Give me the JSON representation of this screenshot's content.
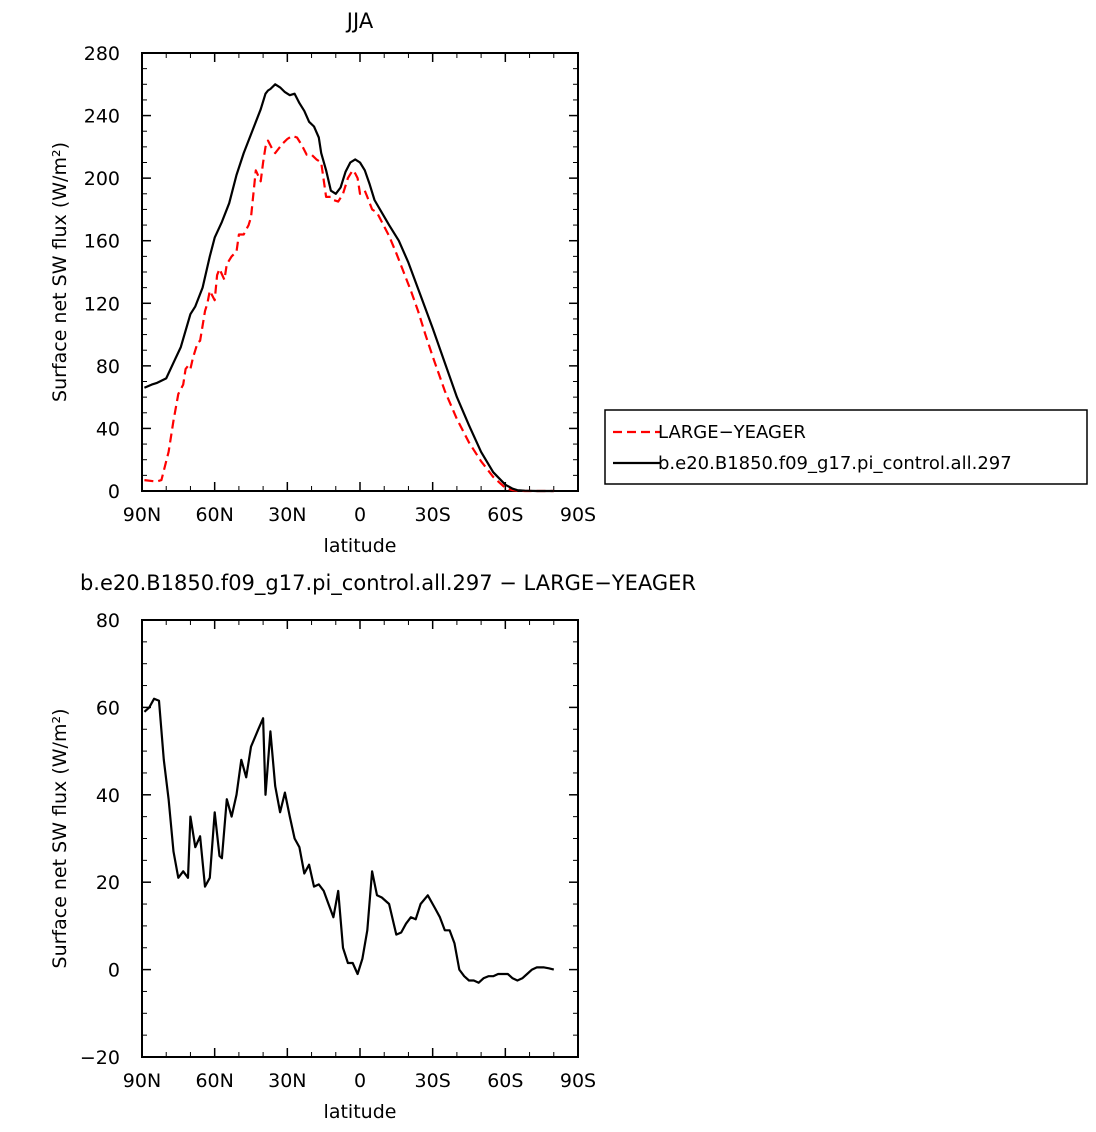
{
  "chart_data": [
    {
      "type": "line",
      "title": "JJA",
      "xlabel": "latitude",
      "ylabel": "Surface net SW flux (W/m²)",
      "xlim": [
        90,
        -90
      ],
      "ylim": [
        0,
        280
      ],
      "xticks": [
        90,
        60,
        30,
        0,
        -30,
        -60,
        -90
      ],
      "xticklabels": [
        "90N",
        "60N",
        "30N",
        "0",
        "30S",
        "60S",
        "90S"
      ],
      "yticks": [
        0,
        40,
        80,
        120,
        160,
        200,
        240,
        280
      ],
      "yticklabels": [
        "0",
        "40",
        "80",
        "120",
        "160",
        "200",
        "240",
        "280"
      ],
      "legend_position": "right",
      "series": [
        {
          "name": "LARGE−YEAGER",
          "color": "#ff0000",
          "dash": true,
          "x": [
            89,
            84,
            82,
            79,
            77,
            75,
            73,
            72,
            71,
            70,
            69,
            67,
            66,
            64,
            63,
            62,
            60,
            59,
            58,
            56,
            55,
            53,
            51,
            50,
            48,
            46,
            45,
            43,
            41,
            40,
            39,
            38,
            36,
            35,
            34,
            32,
            30,
            28,
            26,
            24,
            22,
            20,
            18,
            16,
            14,
            12,
            11,
            9,
            7,
            5,
            3,
            2,
            1,
            0,
            -1,
            -2,
            -3,
            -5,
            -7,
            -9,
            -12,
            -15,
            -18,
            -21,
            -24,
            -27,
            -30,
            -35,
            -40,
            -45,
            -50,
            -55,
            -60,
            -63,
            -66,
            -68,
            -70,
            -72,
            -75,
            -80
          ],
          "values": [
            7,
            6,
            7,
            25,
            45,
            62,
            68,
            78,
            80,
            78,
            85,
            95,
            96,
            115,
            120,
            128,
            122,
            138,
            142,
            135,
            145,
            150,
            153,
            164,
            164,
            170,
            175,
            205,
            198,
            210,
            220,
            224,
            218,
            216,
            218,
            222,
            225,
            227,
            226,
            221,
            215,
            215,
            212,
            210,
            188,
            188,
            186,
            185,
            190,
            200,
            205,
            203,
            200,
            190,
            191,
            192,
            188,
            180,
            178,
            172,
            163,
            152,
            140,
            128,
            115,
            100,
            86,
            64,
            46,
            31,
            19,
            9,
            2,
            0.5,
            0.1,
            0,
            0,
            0,
            0,
            0
          ]
        },
        {
          "name": "b.e20.B1850.f09_g17.pi_control.all.297",
          "color": "#000000",
          "dash": false,
          "x": [
            89,
            86,
            84,
            80,
            77,
            74,
            70,
            68,
            65,
            62,
            60,
            57,
            54,
            51,
            48,
            44,
            41,
            39,
            38,
            37,
            35,
            33,
            31,
            29,
            27,
            25,
            23,
            21,
            19,
            17,
            16,
            14,
            12,
            10,
            8,
            6,
            4,
            2,
            0,
            -2,
            -4,
            -6,
            -9,
            -12,
            -16,
            -20,
            -25,
            -30,
            -35,
            -40,
            -45,
            -50,
            -55,
            -60,
            -63,
            -65,
            -68,
            -70,
            -73,
            -76,
            -80
          ],
          "values": [
            66,
            68,
            69,
            72,
            82,
            92,
            113,
            118,
            130,
            150,
            162,
            172,
            184,
            202,
            216,
            232,
            244,
            254,
            256,
            257,
            260,
            258,
            255,
            253,
            254,
            248,
            243,
            236,
            233,
            226,
            216,
            205,
            192,
            190,
            194,
            204,
            210,
            212,
            210,
            205,
            196,
            186,
            178,
            170,
            160,
            146,
            125,
            104,
            82,
            60,
            42,
            25,
            12,
            4,
            1.5,
            0.5,
            0.2,
            0.1,
            0,
            0,
            0
          ]
        }
      ]
    },
    {
      "type": "line",
      "title": "b.e20.B1850.f09_g17.pi_control.all.297 − LARGE−YEAGER",
      "xlabel": "latitude",
      "ylabel": "Surface net SW flux (W/m²)",
      "xlim": [
        90,
        -90
      ],
      "ylim": [
        -20,
        80
      ],
      "xticks": [
        90,
        60,
        30,
        0,
        -30,
        -60,
        -90
      ],
      "xticklabels": [
        "90N",
        "60N",
        "30N",
        "0",
        "30S",
        "60S",
        "90S"
      ],
      "yticks": [
        -20,
        0,
        20,
        40,
        60,
        80
      ],
      "yticklabels": [
        "−20",
        "0",
        "20",
        "40",
        "60",
        "80"
      ],
      "series": [
        {
          "name": "",
          "color": "#000000",
          "dash": false,
          "x": [
            89,
            87,
            85,
            83,
            81,
            79,
            77,
            75,
            73,
            71,
            70,
            68,
            66,
            64,
            62,
            60,
            58,
            57,
            55,
            53,
            51,
            49,
            47,
            45,
            42,
            40,
            39,
            37,
            35,
            33,
            31,
            29,
            27,
            25,
            23,
            21,
            19,
            17,
            15,
            13,
            11,
            9,
            7,
            5,
            3,
            1,
            -1,
            -3,
            -5,
            -7,
            -9,
            -12,
            -15,
            -17,
            -19,
            -21,
            -23,
            -25,
            -28,
            -31,
            -33,
            -35,
            -37,
            -39,
            -41,
            -43,
            -45,
            -47,
            -49,
            -51,
            -53,
            -55,
            -57,
            -59,
            -61,
            -63,
            -65,
            -67,
            -69,
            -71,
            -73,
            -76,
            -78,
            -80
          ],
          "values": [
            59,
            60,
            62,
            61.5,
            48,
            39,
            27,
            21,
            22.5,
            21,
            35,
            28,
            30.5,
            19,
            21,
            36,
            26,
            25.5,
            39,
            35,
            40,
            48,
            44,
            51,
            55,
            57.5,
            40,
            54.5,
            42,
            36,
            40.5,
            35,
            30,
            28,
            22,
            24,
            19,
            19.5,
            18,
            15,
            12,
            18,
            5,
            1.5,
            1.5,
            -1,
            2.5,
            9,
            22.5,
            17,
            16.5,
            15,
            8,
            8.5,
            10.5,
            12,
            11.5,
            15,
            17,
            14,
            12,
            9,
            9,
            6,
            0,
            -1.5,
            -2.5,
            -2.5,
            -3,
            -2,
            -1.5,
            -1.5,
            -1,
            -1,
            -1,
            -2,
            -2.5,
            -2,
            -1,
            0,
            0.5,
            0.5,
            0.3,
            0
          ]
        }
      ]
    }
  ]
}
